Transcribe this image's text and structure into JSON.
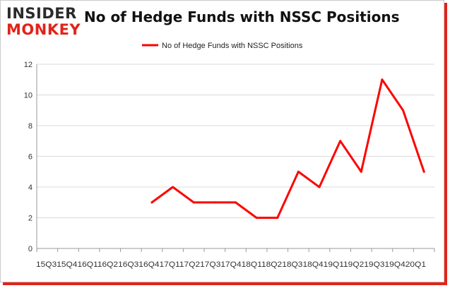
{
  "logo": {
    "line1": "INSIDER",
    "line2": "MONKEY"
  },
  "chart_data": {
    "type": "line",
    "title": "No of Hedge Funds with NSSC Positions",
    "xlabel": "",
    "ylabel": "",
    "categories": [
      "15Q3",
      "15Q4",
      "16Q1",
      "16Q2",
      "16Q3",
      "16Q4",
      "17Q1",
      "17Q2",
      "17Q3",
      "17Q4",
      "18Q1",
      "18Q2",
      "18Q3",
      "18Q4",
      "19Q1",
      "19Q2",
      "19Q3",
      "19Q4",
      "20Q1"
    ],
    "x_axis_label_text": "15Q315Q416Q116Q216Q316Q417Q117Q217Q317Q418Q118Q218Q318Q419Q119Q219Q319Q420Q1",
    "series": [
      {
        "name": "No of Hedge Funds with NSSC Positions",
        "values": [
          null,
          null,
          null,
          null,
          null,
          3,
          4,
          3,
          3,
          3,
          2,
          2,
          5,
          4,
          7,
          5,
          11,
          9,
          5
        ],
        "color": "#ff0000"
      }
    ],
    "ylim": [
      0,
      12
    ],
    "yticks": [
      0,
      2,
      4,
      6,
      8,
      10,
      12
    ],
    "grid": true,
    "legend_position": "top-center"
  }
}
